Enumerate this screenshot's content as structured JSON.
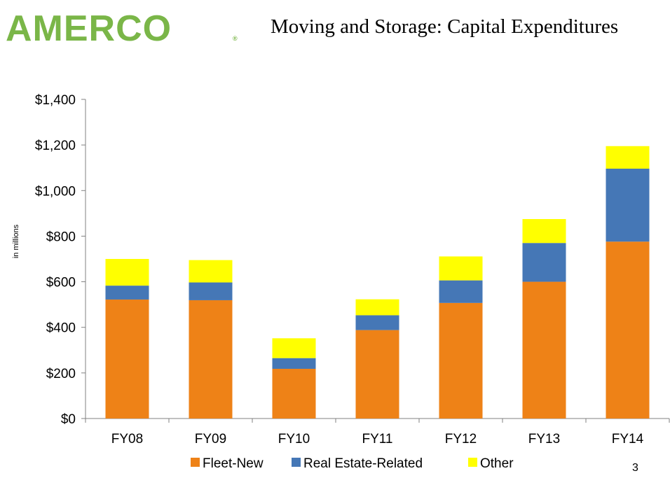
{
  "header": {
    "logo_text": "AMERCO",
    "logo_reg": "®",
    "title": "Moving and Storage: Capital Expenditures"
  },
  "page_number": "3",
  "colors": {
    "logo": "#7ab648",
    "fleet_new": "#ee8217",
    "real_estate": "#4577b6",
    "other": "#ffff00",
    "axis": "#808080"
  },
  "chart_data": {
    "type": "bar",
    "stacked": true,
    "title": "",
    "xlabel": "",
    "ylabel": "in millions",
    "ylim": [
      0,
      1400
    ],
    "yticks": [
      0,
      200,
      400,
      600,
      800,
      1000,
      1200,
      1400
    ],
    "ytick_labels": [
      "$0",
      "$200",
      "$400",
      "$600",
      "$800",
      "$1,000",
      "$1,200",
      "$1,400"
    ],
    "categories": [
      "FY08",
      "FY09",
      "FY10",
      "FY11",
      "FY12",
      "FY13",
      "FY14"
    ],
    "series": [
      {
        "name": "Fleet-New",
        "color": "#ee8217",
        "values": [
          522,
          519,
          218,
          388,
          507,
          600,
          776
        ]
      },
      {
        "name": "Real Estate-Related",
        "color": "#4577b6",
        "values": [
          61,
          78,
          47,
          65,
          99,
          170,
          320
        ]
      },
      {
        "name": "Other",
        "color": "#ffff00",
        "values": [
          117,
          98,
          87,
          70,
          105,
          105,
          99
        ]
      }
    ],
    "grid": false,
    "legend_position": "bottom"
  }
}
